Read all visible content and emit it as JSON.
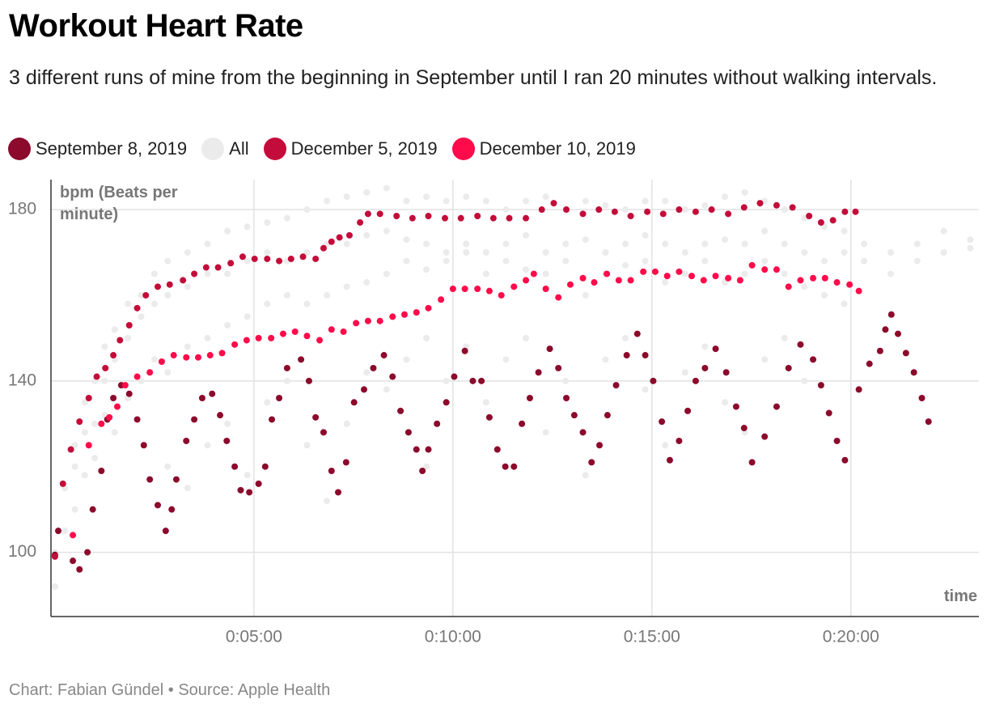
{
  "chart_data": {
    "type": "scatter",
    "title": "Workout Heart Rate",
    "subtitle": "3 different runs of mine from the beginning in September until I ran 20 minutes without walking intervals.",
    "y_label": "bpm (Beats per minute)",
    "x_label": "time",
    "caption": "Chart: Fabian Gündel • Source: Apple Health",
    "xlim": [
      -6,
      1393
    ],
    "ylim": [
      85,
      187
    ],
    "xticks": [
      {
        "value": 300,
        "label": "0:05:00"
      },
      {
        "value": 600,
        "label": "0:10:00"
      },
      {
        "value": 900,
        "label": "0:15:00"
      },
      {
        "value": 1200,
        "label": "0:20:00"
      }
    ],
    "yticks": [
      100,
      140,
      180
    ],
    "grid": true,
    "series": [
      {
        "name": "September 8, 2019",
        "color": "#8c0a2c",
        "x": [
          0,
          5,
          27,
          37,
          49,
          57,
          70,
          79,
          88,
          100,
          112,
          124,
          134,
          143,
          155,
          167,
          176,
          183,
          198,
          210,
          222,
          237,
          249,
          259,
          271,
          280,
          293,
          307,
          317,
          327,
          338,
          350,
          371,
          383,
          393,
          405,
          417,
          427,
          439,
          451,
          466,
          480,
          496,
          509,
          521,
          533,
          545,
          554,
          563,
          576,
          590,
          602,
          618,
          630,
          643,
          655,
          667,
          679,
          692,
          704,
          716,
          729,
          746,
          759,
          771,
          783,
          796,
          809,
          821,
          833,
          846,
          862,
          878,
          890,
          902,
          915,
          927,
          941,
          954,
          966,
          980,
          996,
          1012,
          1027,
          1039,
          1051,
          1070,
          1088,
          1106,
          1124,
          1143,
          1155,
          1167,
          1179,
          1191,
          1212,
          1228,
          1244,
          1252,
          1261,
          1271,
          1283,
          1295,
          1307,
          1317
        ],
        "values": [
          99.4,
          105,
          98,
          96,
          100,
          110,
          119,
          131,
          136,
          139,
          137,
          131,
          125,
          117,
          111,
          105,
          110,
          117,
          126,
          131,
          136,
          137,
          132,
          126,
          120,
          114.5,
          114,
          116,
          120,
          131,
          136,
          143,
          145,
          140,
          131.5,
          128,
          119,
          114,
          121,
          135,
          138,
          143,
          146,
          141,
          133,
          128,
          124,
          119,
          124,
          130,
          135,
          141,
          147,
          140,
          140,
          131.5,
          124,
          120,
          120,
          130,
          136,
          142,
          147.5,
          143,
          136,
          132,
          128,
          121,
          125,
          132,
          139,
          146,
          151,
          146,
          140,
          130.5,
          121.5,
          126,
          133,
          140,
          143,
          147.5,
          142,
          134,
          129,
          121,
          127,
          134,
          143,
          148.5,
          145,
          139,
          132.5,
          126,
          121.5,
          138,
          144,
          147,
          152,
          155.5,
          151,
          146.5,
          142,
          136,
          130.5
        ]
      },
      {
        "name": "All",
        "color": "#ebebeb",
        "x": [
          0,
          0,
          15,
          15,
          30,
          30,
          30,
          45,
          45,
          45,
          60,
          60,
          60,
          75,
          75,
          75,
          90,
          90,
          90,
          110,
          110,
          110,
          130,
          130,
          130,
          150,
          150,
          150,
          170,
          170,
          170,
          170,
          200,
          200,
          200,
          200,
          230,
          230,
          230,
          230,
          260,
          260,
          260,
          260,
          290,
          290,
          290,
          290,
          320,
          320,
          320,
          320,
          350,
          350,
          350,
          350,
          380,
          380,
          380,
          380,
          410,
          410,
          410,
          410,
          440,
          440,
          440,
          440,
          470,
          470,
          470,
          470,
          500,
          500,
          500,
          500,
          530,
          530,
          530,
          530,
          560,
          560,
          560,
          560,
          560,
          590,
          590,
          590,
          590,
          620,
          620,
          620,
          620,
          650,
          650,
          650,
          650,
          680,
          680,
          680,
          680,
          710,
          710,
          710,
          710,
          740,
          740,
          740,
          740,
          770,
          770,
          770,
          770,
          800,
          800,
          800,
          800,
          830,
          830,
          830,
          830,
          860,
          860,
          860,
          860,
          890,
          890,
          890,
          890,
          920,
          920,
          920,
          920,
          950,
          950,
          950,
          950,
          980,
          980,
          980,
          980,
          1010,
          1010,
          1010,
          1010,
          1040,
          1040,
          1040,
          1040,
          1070,
          1070,
          1070,
          1070,
          1100,
          1100,
          1100,
          1100,
          1130,
          1130,
          1130,
          1130,
          1160,
          1160,
          1160,
          1190,
          1190,
          1190,
          1220,
          1220,
          1260,
          1260,
          1300,
          1300,
          1340,
          1340,
          1380,
          1380
        ],
        "values": [
          92,
          100,
          105,
          115,
          110,
          125,
          120,
          118,
          135,
          128,
          130,
          140,
          122,
          140,
          148,
          132,
          145,
          152,
          128,
          150,
          158,
          136,
          155,
          160,
          140,
          158,
          165,
          145,
          160,
          168,
          142,
          120,
          162,
          170,
          148,
          115,
          165,
          172,
          150,
          125,
          165,
          175,
          153,
          130,
          168,
          176,
          155,
          118,
          170,
          177,
          158,
          135,
          168,
          178,
          160,
          140,
          170,
          180,
          158,
          125,
          172,
          182,
          160,
          112,
          172,
          183,
          162,
          130,
          174,
          184,
          163,
          142,
          175,
          185,
          165,
          138,
          173,
          182,
          168,
          145,
          172,
          183,
          166,
          150,
          120,
          170,
          182,
          168,
          140,
          172,
          183,
          170,
          148,
          170,
          182,
          165,
          135,
          172,
          180,
          168,
          145,
          174,
          182,
          166,
          150,
          170,
          183,
          165,
          128,
          172,
          180,
          168,
          140,
          173,
          182,
          160,
          118,
          170,
          181,
          165,
          145,
          172,
          180,
          167,
          150,
          174,
          182,
          168,
          138,
          172,
          182,
          163,
          125,
          170,
          180,
          165,
          142,
          172,
          181,
          168,
          148,
          173,
          183,
          163,
          135,
          172,
          184,
          165,
          128,
          175,
          182,
          168,
          145,
          172,
          180,
          165,
          150,
          170,
          178,
          162,
          140,
          168,
          176,
          160,
          170,
          175,
          158,
          168,
          172,
          170,
          165,
          172,
          168,
          175,
          170,
          173,
          171
        ]
      },
      {
        "name": "December 5, 2019",
        "color": "#c40c3a",
        "x": [
          0,
          12,
          24,
          37,
          51,
          63,
          76,
          88,
          98,
          112,
          124,
          137,
          155,
          173,
          193,
          210,
          228,
          246,
          265,
          283,
          301,
          320,
          338,
          356,
          374,
          393,
          405,
          417,
          429,
          444,
          460,
          472,
          490,
          515,
          539,
          563,
          588,
          612,
          637,
          661,
          685,
          710,
          734,
          752,
          771,
          796,
          820,
          844,
          868,
          893,
          917,
          941,
          966,
          990,
          1015,
          1039,
          1063,
          1088,
          1112,
          1137,
          1155,
          1173,
          1191,
          1207
        ],
        "values": [
          99,
          116,
          124,
          130.5,
          136,
          141,
          143,
          146,
          149.5,
          153,
          157,
          160,
          162,
          162.5,
          163.5,
          165,
          166.5,
          166.5,
          167.5,
          169,
          168.5,
          168.5,
          168,
          168.5,
          169,
          168.5,
          171,
          172.5,
          173.5,
          174,
          177,
          179,
          179,
          178.5,
          178,
          178.5,
          178,
          178,
          178.5,
          178,
          178,
          178,
          180,
          181.5,
          180,
          179,
          180,
          179.5,
          178.5,
          179.5,
          179,
          180,
          179.5,
          180,
          179,
          180.5,
          181.5,
          181,
          180.5,
          178.5,
          177,
          177.5,
          179.5,
          179.5
        ]
      },
      {
        "name": "December 10, 2019",
        "color": "#ff0a4a",
        "x": [
          27,
          51,
          70,
          82,
          94,
          106,
          124,
          143,
          161,
          179,
          198,
          216,
          234,
          252,
          271,
          289,
          307,
          326,
          344,
          362,
          380,
          399,
          417,
          435,
          454,
          472,
          490,
          509,
          527,
          545,
          563,
          582,
          600,
          618,
          637,
          655,
          673,
          692,
          710,
          722,
          740,
          759,
          777,
          796,
          813,
          832,
          850,
          868,
          887,
          905,
          923,
          941,
          960,
          978,
          996,
          1015,
          1033,
          1051,
          1070,
          1088,
          1106,
          1124,
          1143,
          1161,
          1179,
          1198,
          1212
        ],
        "values": [
          104,
          125,
          130,
          131.5,
          134,
          139,
          141,
          142,
          144.5,
          146,
          145.5,
          145.5,
          146,
          146.5,
          148.5,
          149.5,
          150,
          150,
          151,
          151.5,
          150.5,
          149.5,
          152,
          151.5,
          153.5,
          154,
          154,
          155,
          155.5,
          156,
          157,
          159,
          161.5,
          161.5,
          161.5,
          161,
          160,
          162,
          163.5,
          165,
          161.5,
          159.5,
          162.5,
          164,
          163,
          165,
          163.5,
          163.5,
          165.5,
          165.5,
          164.5,
          165.5,
          164.5,
          163.5,
          164.5,
          164,
          163.5,
          167,
          166,
          166,
          162,
          163.5,
          164,
          164,
          163,
          162.5,
          161
        ]
      }
    ]
  }
}
